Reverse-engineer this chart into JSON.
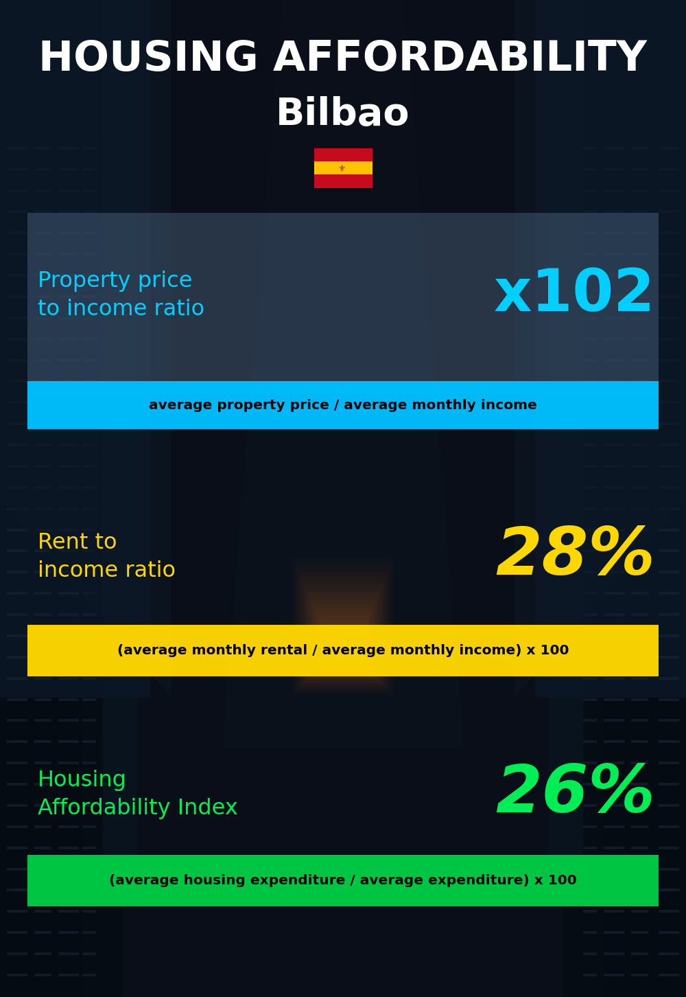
{
  "title_line1": "HOUSING AFFORDABILITY",
  "title_line2": "Bilbao",
  "section1_label": "Property price\nto income ratio",
  "section1_value": "x102",
  "section1_sublabel": "average property price / average monthly income",
  "section1_label_color": "#00CFFF",
  "section1_value_color": "#00CFFF",
  "section1_bg_color": "#00BFFF",
  "section2_label": "Rent to\nincome ratio",
  "section2_value": "28%",
  "section2_sublabel": "(average monthly rental / average monthly income) x 100",
  "section2_label_color": "#FFD700",
  "section2_value_color": "#FFD700",
  "section2_bg_color": "#FFD700",
  "section3_label": "Housing\nAffordability Index",
  "section3_value": "26%",
  "section3_sublabel": "(average housing expenditure / average expenditure) x 100",
  "section3_label_color": "#00EE55",
  "section3_value_color": "#00EE55",
  "section3_bg_color": "#00CC44",
  "background_color": "#080d15",
  "title_color": "#FFFFFF",
  "subtitle_color": "#FFFFFF",
  "sublabel_text_color": "#000000",
  "panel1_color": "#7090a0",
  "panel1_alpha": 0.35
}
